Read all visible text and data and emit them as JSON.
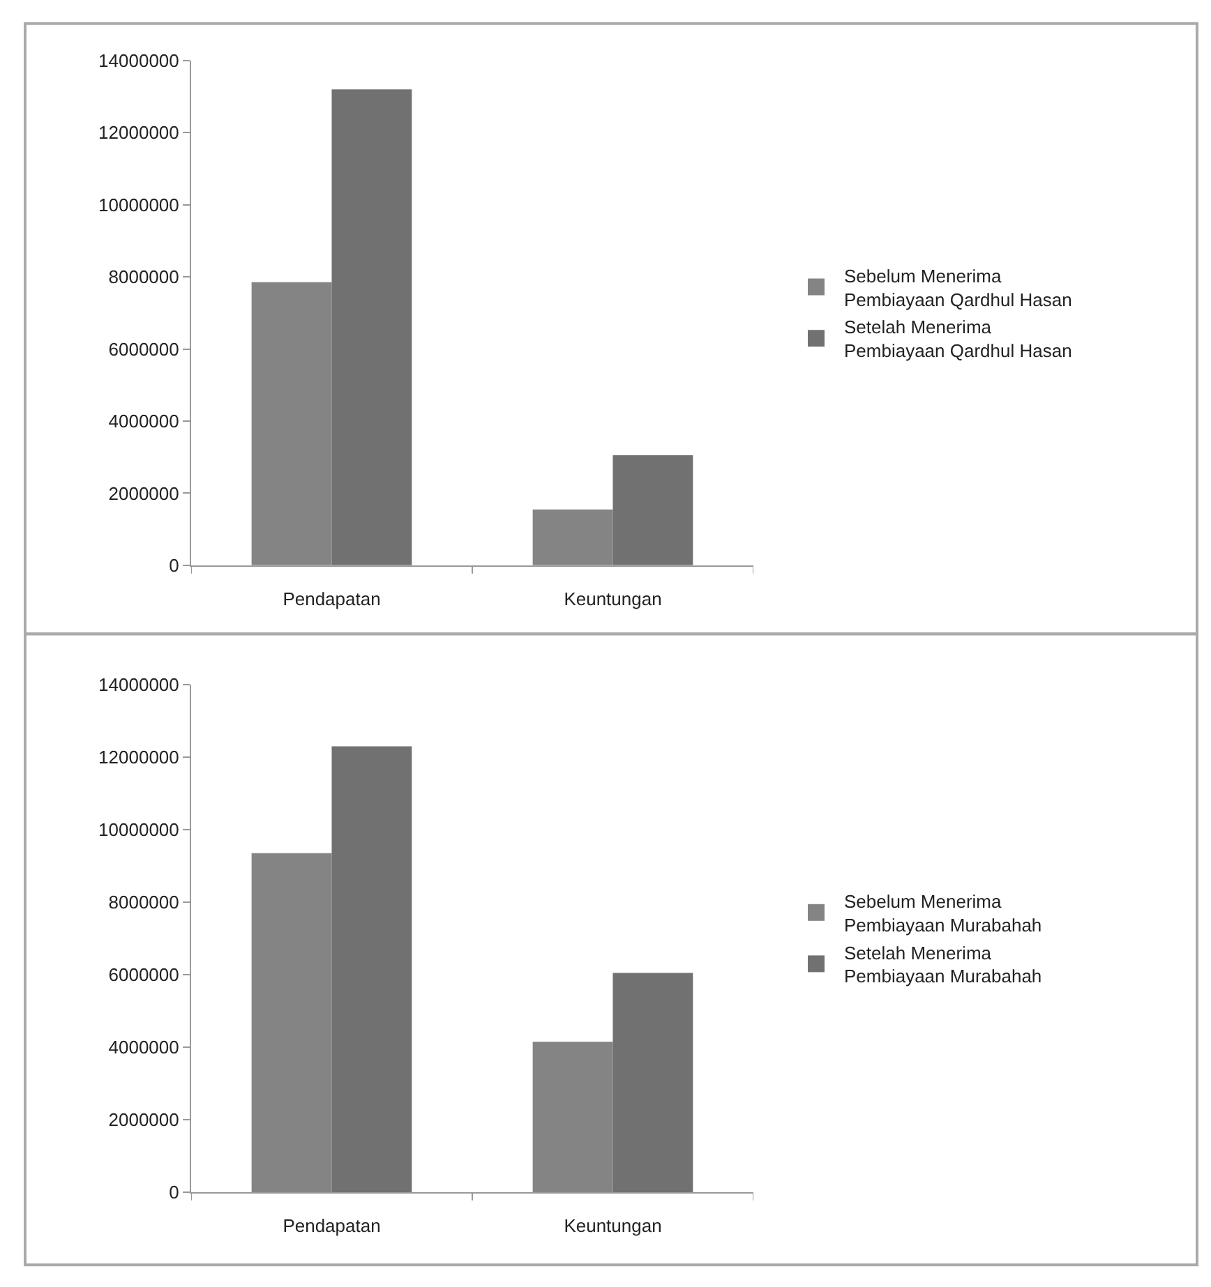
{
  "chart_data": [
    {
      "type": "bar",
      "categories": [
        "Pendapatan",
        "Keuntungan"
      ],
      "series": [
        {
          "name": "Sebelum Menerima Pembiayaan Qardhul Hasan",
          "color": "#848484",
          "values": [
            7850000,
            1550000
          ]
        },
        {
          "name": "Setelah Menerima Pembiayaan Qardhul Hasan",
          "color": "#717171",
          "values": [
            13200000,
            3050000
          ]
        }
      ],
      "ylim": [
        0,
        14000000
      ],
      "yticks": [
        0,
        2000000,
        4000000,
        6000000,
        8000000,
        10000000,
        12000000,
        14000000
      ],
      "legend": "right"
    },
    {
      "type": "bar",
      "categories": [
        "Pendapatan",
        "Keuntungan"
      ],
      "series": [
        {
          "name": "Sebelum Menerima Pembiayaan Murabahah",
          "color": "#848484",
          "values": [
            9350000,
            4150000
          ]
        },
        {
          "name": "Setelah Menerima Pembiayaan Murabahah",
          "color": "#717171",
          "values": [
            12300000,
            6050000
          ]
        }
      ],
      "ylim": [
        0,
        14000000
      ],
      "yticks": [
        0,
        2000000,
        4000000,
        6000000,
        8000000,
        10000000,
        12000000,
        14000000
      ],
      "legend": "right"
    }
  ]
}
